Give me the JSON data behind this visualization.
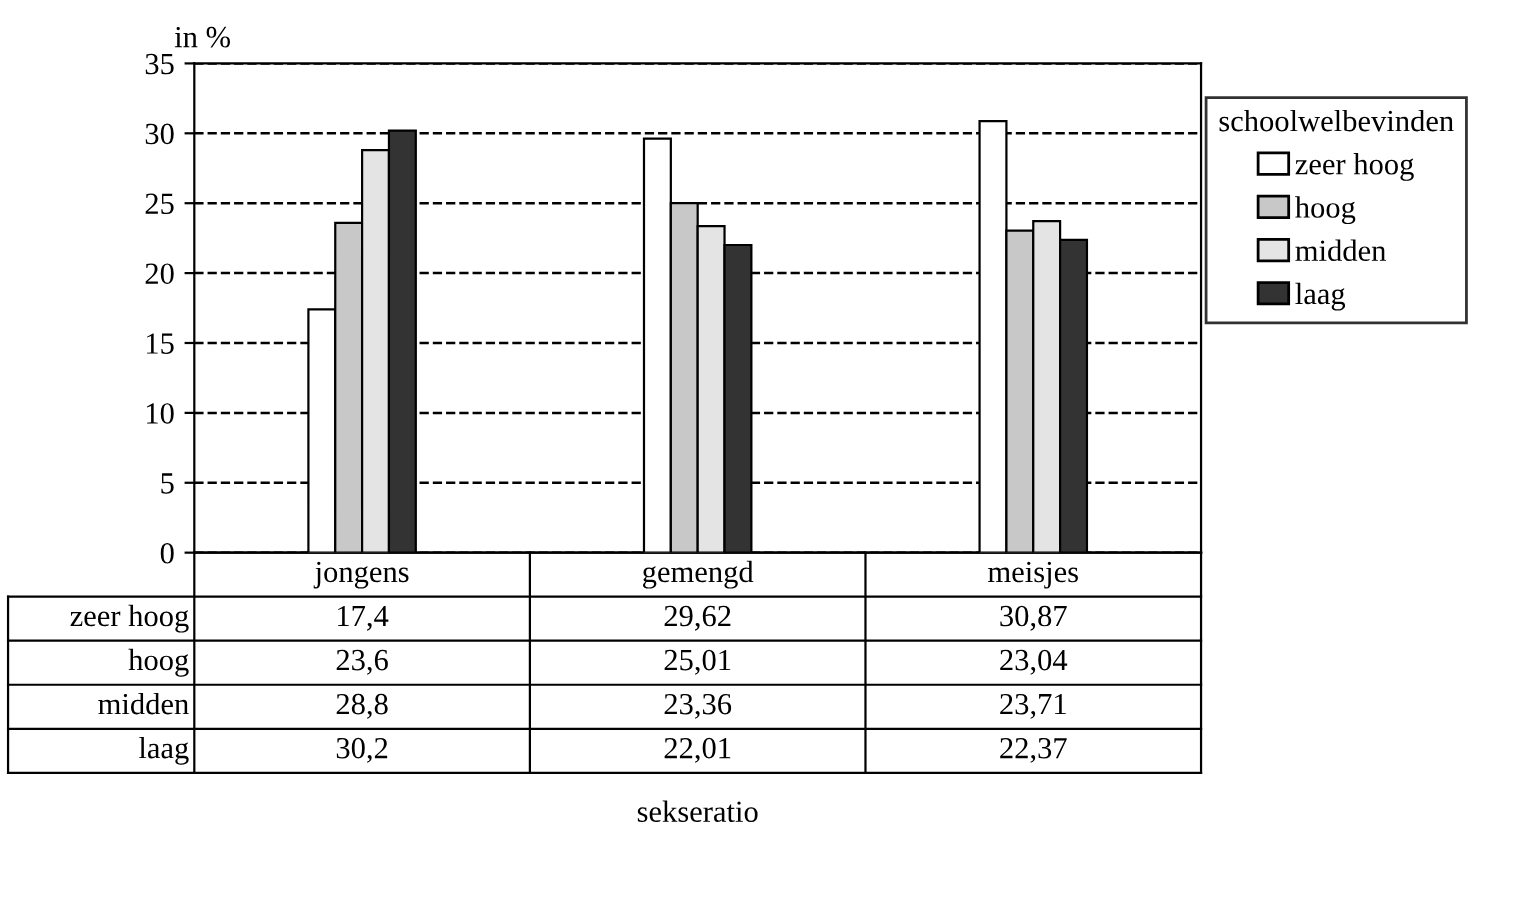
{
  "chart_data": {
    "type": "bar",
    "ylabel": "in %",
    "annotations": [
      "sekseratio"
    ],
    "legend_title": "schoolwelbevinden",
    "categories": [
      "jongens",
      "gemengd",
      "meisjes"
    ],
    "series": [
      {
        "name": "zeer hoog",
        "color": "#ffffff",
        "values": [
          17.4,
          29.62,
          30.87
        ],
        "value_labels": [
          "17,4",
          "29,62",
          "30,87"
        ]
      },
      {
        "name": "hoog",
        "color": "#c8c8c8",
        "values": [
          23.6,
          25.01,
          23.04
        ],
        "value_labels": [
          "23,6",
          "25,01",
          "23,04"
        ]
      },
      {
        "name": "midden",
        "color": "#e4e4e4",
        "values": [
          28.8,
          23.36,
          23.71
        ],
        "value_labels": [
          "28,8",
          "23,36",
          "23,71"
        ]
      },
      {
        "name": "laag",
        "color": "#333333",
        "values": [
          30.2,
          22.01,
          22.37
        ],
        "value_labels": [
          "30,2",
          "22,01",
          "22,37"
        ]
      }
    ],
    "ylim": [
      0,
      35
    ],
    "yticks": [
      0,
      5,
      10,
      15,
      20,
      25,
      30,
      35
    ],
    "grid": "y",
    "legend": "right"
  }
}
